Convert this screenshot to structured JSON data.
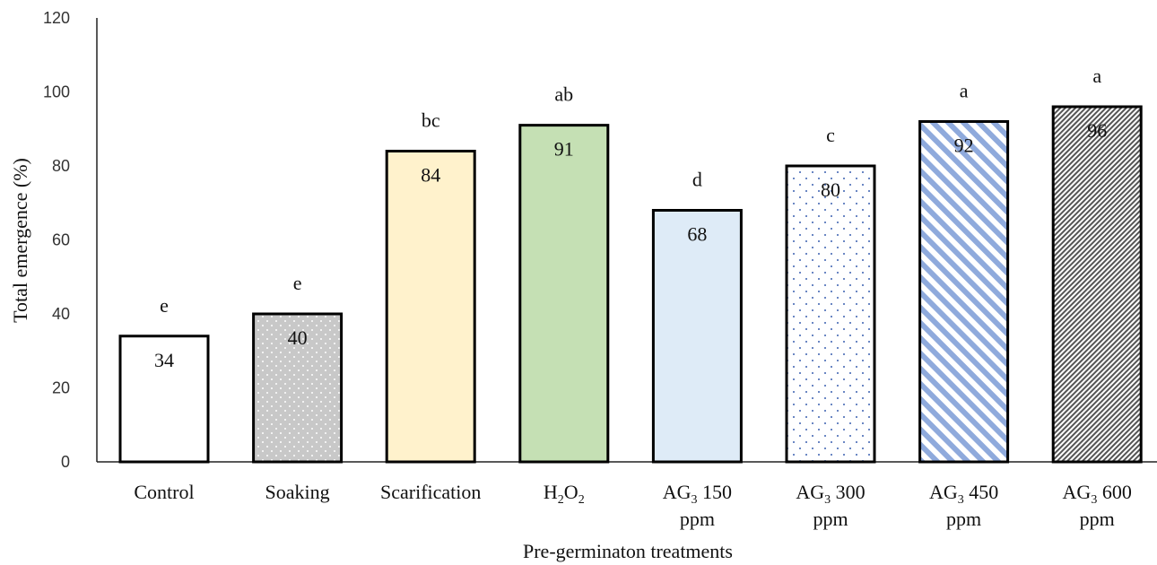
{
  "chart_data": {
    "type": "bar",
    "categories": [
      {
        "line1": "Control",
        "line2": ""
      },
      {
        "line1": "Soaking",
        "line2": ""
      },
      {
        "line1": "Scarification",
        "line2": ""
      },
      {
        "base": "H",
        "sub": "2",
        "rest": "O",
        "sub2": "2",
        "line1": "H2O2",
        "line2": ""
      },
      {
        "base": "AG",
        "sub": "3",
        "rest": "  150",
        "line1": "AG3 150",
        "line2": "ppm"
      },
      {
        "base": "AG",
        "sub": "3",
        "rest": "  300",
        "line1": "AG3 300",
        "line2": "ppm"
      },
      {
        "base": "AG",
        "sub": "3",
        "rest": "  450",
        "line1": "AG3 450",
        "line2": "ppm"
      },
      {
        "base": "AG",
        "sub": "3",
        "rest": "  600",
        "line1": "AG3 600",
        "line2": "ppm"
      }
    ],
    "values": [
      34,
      40,
      84,
      91,
      68,
      80,
      92,
      96
    ],
    "value_labels": [
      "34",
      "40",
      "84",
      "91",
      "68",
      "80",
      "92",
      "96"
    ],
    "significance_letters": [
      "e",
      "e",
      "bc",
      "ab",
      "d",
      "c",
      "a",
      "a"
    ],
    "fills": [
      "white",
      "gray-dots",
      "#fff2cc",
      "#c5e0b4",
      "#deebf7",
      "blue-dots",
      "blue-diagonal",
      "dense-hatch"
    ],
    "ylabel": "Total emergence (%)",
    "xlabel": "Pre-germinaton treatments",
    "ylim": [
      0,
      120
    ],
    "yticks": [
      0,
      20,
      40,
      60,
      80,
      100,
      120
    ],
    "grid": false,
    "colors": {
      "accent_blue": "#8faadc",
      "dot_gray": "#c8c8c8",
      "dot_blue": "#3b5fb0"
    }
  }
}
